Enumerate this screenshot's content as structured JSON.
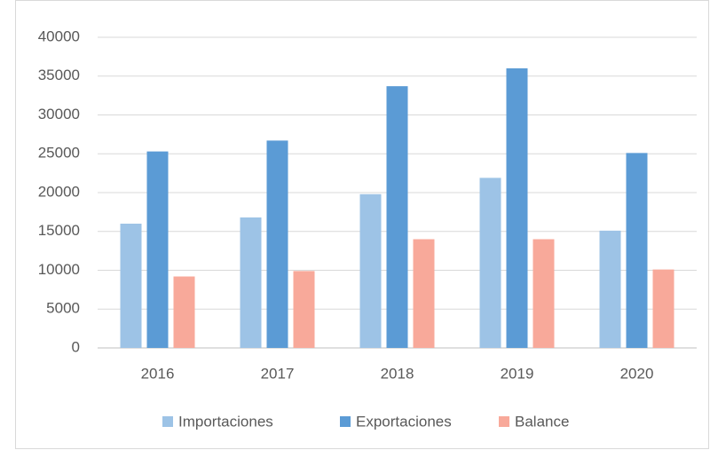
{
  "chart_data": {
    "type": "bar",
    "categories": [
      "2016",
      "2017",
      "2018",
      "2019",
      "2020"
    ],
    "series": [
      {
        "name": "Importaciones",
        "color": "#9dc3e6",
        "values": [
          16000,
          16800,
          19800,
          21900,
          15100
        ]
      },
      {
        "name": "Exportaciones",
        "color": "#5b9bd5",
        "values": [
          25300,
          26700,
          33700,
          36000,
          25100
        ]
      },
      {
        "name": "Balance",
        "color": "#f8a99a",
        "values": [
          9200,
          9900,
          14000,
          14000,
          10100
        ]
      }
    ],
    "ylim": [
      0,
      40000
    ],
    "yticks": [
      0,
      5000,
      10000,
      15000,
      20000,
      25000,
      30000,
      35000,
      40000
    ],
    "grid": true,
    "legend": "bottom"
  }
}
